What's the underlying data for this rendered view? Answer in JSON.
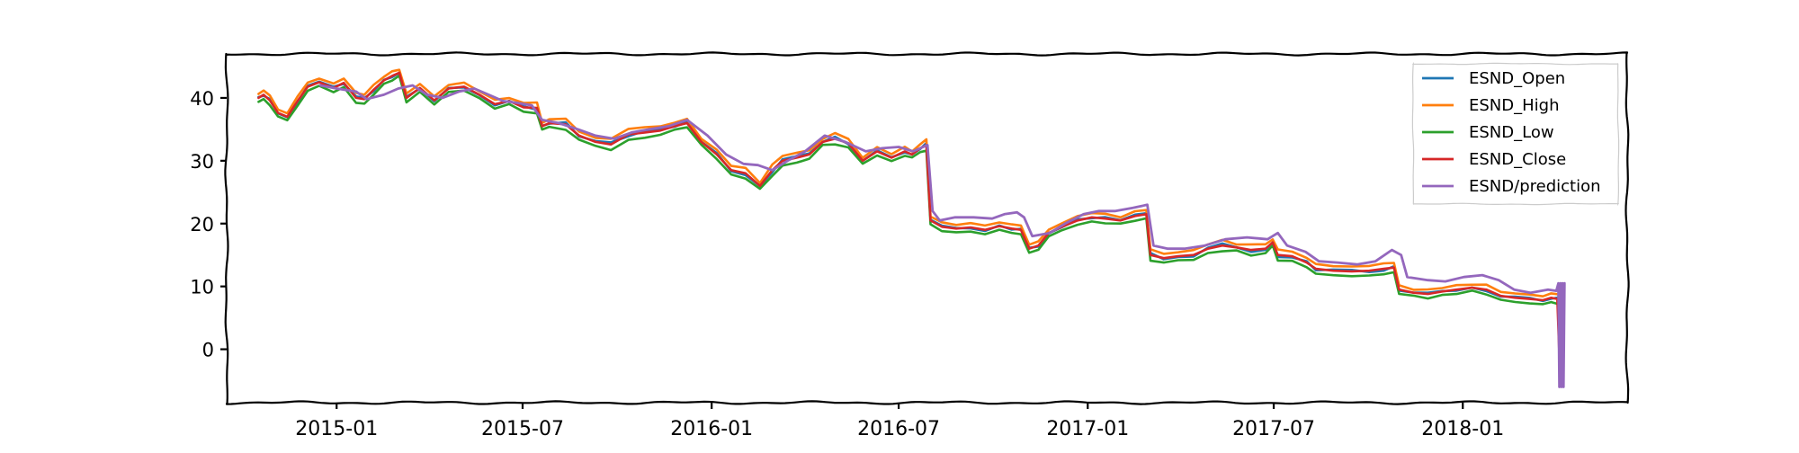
{
  "chart_data": {
    "type": "line",
    "title": "",
    "xlabel": "",
    "ylabel": "",
    "x_tick_labels": [
      "2015-01",
      "2015-07",
      "2016-01",
      "2016-07",
      "2017-01",
      "2017-07",
      "2018-01"
    ],
    "y_ticks": [
      0,
      10,
      20,
      30,
      40
    ],
    "xlim": [
      "2014-09-16",
      "2018-06-10"
    ],
    "ylim": [
      -8.5,
      47
    ],
    "grid": false,
    "legend_position": "top-right",
    "series": [
      {
        "name": "ESND_Open",
        "color": "#1f77b4"
      },
      {
        "name": "ESND_High",
        "color": "#ff7f0e"
      },
      {
        "name": "ESND_Low",
        "color": "#2ca02c"
      },
      {
        "name": "ESND_Close",
        "color": "#d62728",
        "points": [
          [
            "2014-10-17",
            40.0
          ],
          [
            "2014-10-22",
            40.5
          ],
          [
            "2014-10-28",
            39.6
          ],
          [
            "2014-11-05",
            37.6
          ],
          [
            "2014-11-14",
            37.0
          ],
          [
            "2014-11-24",
            39.5
          ],
          [
            "2014-12-04",
            41.8
          ],
          [
            "2014-12-15",
            42.5
          ],
          [
            "2014-12-29",
            41.6
          ],
          [
            "2015-01-08",
            42.4
          ],
          [
            "2015-01-20",
            40.0
          ],
          [
            "2015-01-28",
            39.8
          ],
          [
            "2015-02-06",
            41.3
          ],
          [
            "2015-02-16",
            42.8
          ],
          [
            "2015-02-24",
            43.5
          ],
          [
            "2015-03-03",
            44.0
          ],
          [
            "2015-03-10",
            40.0
          ],
          [
            "2015-03-23",
            41.6
          ],
          [
            "2015-04-06",
            39.6
          ],
          [
            "2015-04-20",
            41.5
          ],
          [
            "2015-05-05",
            41.8
          ],
          [
            "2015-05-20",
            40.5
          ],
          [
            "2015-06-04",
            39.0
          ],
          [
            "2015-06-18",
            39.5
          ],
          [
            "2015-07-02",
            38.5
          ],
          [
            "2015-07-15",
            38.4
          ],
          [
            "2015-07-20",
            35.5
          ],
          [
            "2015-07-27",
            36.0
          ],
          [
            "2015-08-12",
            35.8
          ],
          [
            "2015-08-25",
            34.0
          ],
          [
            "2015-09-10",
            33.0
          ],
          [
            "2015-09-25",
            32.6
          ],
          [
            "2015-10-12",
            34.2
          ],
          [
            "2015-10-28",
            34.5
          ],
          [
            "2015-11-12",
            34.8
          ],
          [
            "2015-11-26",
            35.5
          ],
          [
            "2015-12-08",
            36.0
          ],
          [
            "2015-12-22",
            33.0
          ],
          [
            "2016-01-06",
            31.0
          ],
          [
            "2016-01-20",
            28.5
          ],
          [
            "2016-02-03",
            28.0
          ],
          [
            "2016-02-17",
            26.0
          ],
          [
            "2016-02-29",
            28.5
          ],
          [
            "2016-03-10",
            30.0
          ],
          [
            "2016-03-24",
            30.5
          ],
          [
            "2016-04-05",
            31.0
          ],
          [
            "2016-04-18",
            33.0
          ],
          [
            "2016-04-30",
            33.5
          ],
          [
            "2016-05-13",
            32.8
          ],
          [
            "2016-05-27",
            30.0
          ],
          [
            "2016-06-10",
            31.5
          ],
          [
            "2016-06-24",
            30.5
          ],
          [
            "2016-07-07",
            31.5
          ],
          [
            "2016-07-14",
            31.0
          ],
          [
            "2016-07-22",
            32.0
          ],
          [
            "2016-07-28",
            32.5
          ],
          [
            "2016-08-01",
            20.5
          ],
          [
            "2016-08-12",
            19.5
          ],
          [
            "2016-08-26",
            19.2
          ],
          [
            "2016-09-09",
            19.4
          ],
          [
            "2016-09-23",
            19.0
          ],
          [
            "2016-10-07",
            19.6
          ],
          [
            "2016-10-19",
            19.2
          ],
          [
            "2016-10-28",
            19.0
          ],
          [
            "2016-11-05",
            16.0
          ],
          [
            "2016-11-14",
            16.5
          ],
          [
            "2016-11-24",
            18.5
          ],
          [
            "2016-12-07",
            19.5
          ],
          [
            "2016-12-22",
            20.5
          ],
          [
            "2017-01-05",
            21.0
          ],
          [
            "2017-01-18",
            20.8
          ],
          [
            "2017-02-02",
            20.5
          ],
          [
            "2017-02-16",
            21.2
          ],
          [
            "2017-02-27",
            21.5
          ],
          [
            "2017-03-03",
            15.0
          ],
          [
            "2017-03-16",
            14.5
          ],
          [
            "2017-03-30",
            14.8
          ],
          [
            "2017-04-14",
            15.0
          ],
          [
            "2017-04-28",
            16.0
          ],
          [
            "2017-05-12",
            16.5
          ],
          [
            "2017-05-26",
            16.2
          ],
          [
            "2017-06-09",
            15.8
          ],
          [
            "2017-06-23",
            16.0
          ],
          [
            "2017-06-30",
            17.0
          ],
          [
            "2017-07-05",
            15.0
          ],
          [
            "2017-07-19",
            14.8
          ],
          [
            "2017-08-02",
            13.8
          ],
          [
            "2017-08-11",
            12.8
          ],
          [
            "2017-08-28",
            12.5
          ],
          [
            "2017-09-15",
            12.4
          ],
          [
            "2017-10-02",
            12.5
          ],
          [
            "2017-10-16",
            12.8
          ],
          [
            "2017-10-26",
            13.0
          ],
          [
            "2017-10-31",
            9.5
          ],
          [
            "2017-11-14",
            9.0
          ],
          [
            "2017-11-28",
            8.8
          ],
          [
            "2017-12-12",
            9.2
          ],
          [
            "2017-12-26",
            9.5
          ],
          [
            "2018-01-10",
            9.8
          ],
          [
            "2018-01-24",
            9.5
          ],
          [
            "2018-02-07",
            8.5
          ],
          [
            "2018-02-21",
            8.2
          ],
          [
            "2018-03-07",
            8.0
          ],
          [
            "2018-03-20",
            7.8
          ],
          [
            "2018-03-28",
            8.2
          ],
          [
            "2018-04-03",
            8.0
          ],
          [
            "2018-04-06",
            -5.5
          ],
          [
            "2018-04-09",
            8.5
          ]
        ]
      },
      {
        "name": "ESND/prediction",
        "color": "#9467bd",
        "points": [
          [
            "2014-12-16",
            42.0
          ],
          [
            "2015-01-01",
            41.5
          ],
          [
            "2015-01-20",
            41.0
          ],
          [
            "2015-01-30",
            39.8
          ],
          [
            "2015-02-16",
            40.5
          ],
          [
            "2015-03-02",
            41.5
          ],
          [
            "2015-03-16",
            42.0
          ],
          [
            "2015-03-30",
            40.5
          ],
          [
            "2015-04-14",
            40.0
          ],
          [
            "2015-04-30",
            41.0
          ],
          [
            "2015-05-15",
            41.5
          ],
          [
            "2015-05-29",
            40.5
          ],
          [
            "2015-06-12",
            39.5
          ],
          [
            "2015-06-26",
            39.2
          ],
          [
            "2015-07-10",
            38.8
          ],
          [
            "2015-07-20",
            36.5
          ],
          [
            "2015-08-05",
            36.0
          ],
          [
            "2015-08-24",
            35.0
          ],
          [
            "2015-09-10",
            34.0
          ],
          [
            "2015-09-28",
            33.5
          ],
          [
            "2015-10-15",
            34.5
          ],
          [
            "2015-11-01",
            35.0
          ],
          [
            "2015-11-20",
            35.5
          ],
          [
            "2015-12-08",
            36.5
          ],
          [
            "2015-12-28",
            34.0
          ],
          [
            "2016-01-15",
            31.0
          ],
          [
            "2016-02-01",
            29.5
          ],
          [
            "2016-02-15",
            29.3
          ],
          [
            "2016-02-29",
            28.5
          ],
          [
            "2016-03-15",
            30.0
          ],
          [
            "2016-04-01",
            31.5
          ],
          [
            "2016-04-20",
            34.0
          ],
          [
            "2016-05-10",
            33.0
          ],
          [
            "2016-05-30",
            31.5
          ],
          [
            "2016-06-15",
            32.0
          ],
          [
            "2016-07-01",
            32.2
          ],
          [
            "2016-07-15",
            31.5
          ],
          [
            "2016-07-29",
            32.5
          ],
          [
            "2016-08-03",
            22.0
          ],
          [
            "2016-08-10",
            20.5
          ],
          [
            "2016-08-25",
            21.0
          ],
          [
            "2016-09-12",
            21.0
          ],
          [
            "2016-09-30",
            20.8
          ],
          [
            "2016-10-12",
            21.5
          ],
          [
            "2016-10-24",
            21.8
          ],
          [
            "2016-10-31",
            21.0
          ],
          [
            "2016-11-08",
            18.0
          ],
          [
            "2016-11-25",
            18.5
          ],
          [
            "2016-12-10",
            20.0
          ],
          [
            "2016-12-28",
            21.5
          ],
          [
            "2017-01-12",
            22.0
          ],
          [
            "2017-01-28",
            22.0
          ],
          [
            "2017-02-14",
            22.5
          ],
          [
            "2017-02-28",
            23.0
          ],
          [
            "2017-03-06",
            16.5
          ],
          [
            "2017-03-20",
            16.0
          ],
          [
            "2017-04-05",
            16.0
          ],
          [
            "2017-04-25",
            16.5
          ],
          [
            "2017-05-15",
            17.5
          ],
          [
            "2017-06-05",
            17.8
          ],
          [
            "2017-06-25",
            17.5
          ],
          [
            "2017-07-05",
            18.5
          ],
          [
            "2017-07-14",
            16.5
          ],
          [
            "2017-08-01",
            15.5
          ],
          [
            "2017-08-14",
            14.0
          ],
          [
            "2017-09-01",
            13.8
          ],
          [
            "2017-09-20",
            13.5
          ],
          [
            "2017-10-08",
            14.0
          ],
          [
            "2017-10-24",
            15.8
          ],
          [
            "2017-11-02",
            15.0
          ],
          [
            "2017-11-08",
            11.5
          ],
          [
            "2017-11-28",
            11.0
          ],
          [
            "2017-12-15",
            10.8
          ],
          [
            "2018-01-02",
            11.5
          ],
          [
            "2018-01-20",
            11.8
          ],
          [
            "2018-02-05",
            11.0
          ],
          [
            "2018-02-20",
            9.5
          ],
          [
            "2018-03-08",
            9.0
          ],
          [
            "2018-03-25",
            9.5
          ],
          [
            "2018-04-02",
            9.3
          ],
          [
            "2018-04-04",
            10.5
          ],
          [
            "2018-04-05",
            -6.0
          ],
          [
            "2018-04-06",
            10.5
          ],
          [
            "2018-04-07",
            -6.0
          ],
          [
            "2018-04-08",
            10.5
          ],
          [
            "2018-04-09",
            -6.0
          ],
          [
            "2018-04-10",
            10.5
          ]
        ]
      }
    ]
  }
}
